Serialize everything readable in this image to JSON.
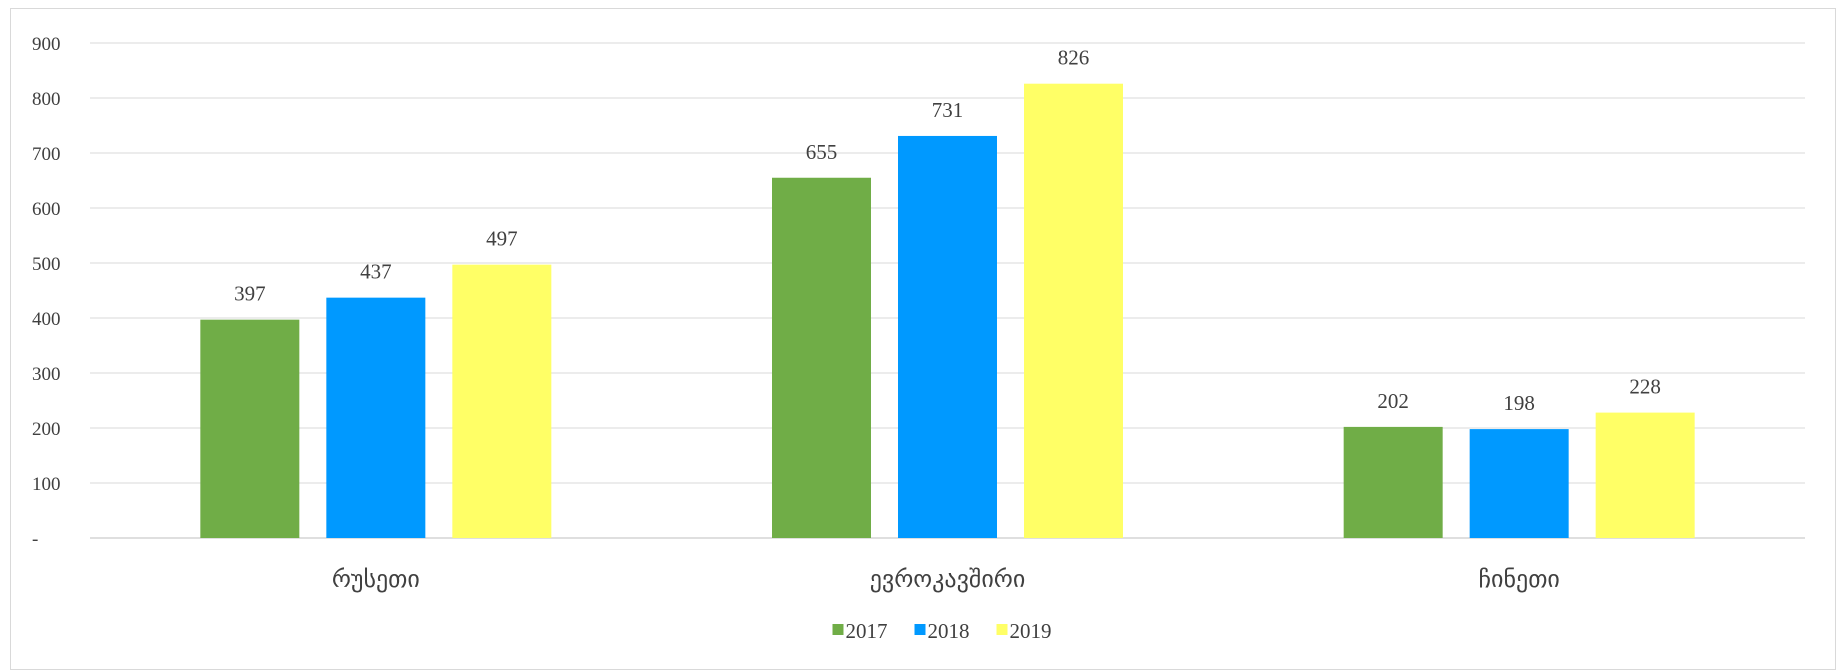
{
  "chart_data": {
    "type": "bar",
    "title": "",
    "xlabel": "",
    "ylabel": "",
    "categories": [
      "რუსეთი",
      "ევროკავშირი",
      "ჩინეთი"
    ],
    "series": [
      {
        "name": "2017",
        "values": [
          397,
          655,
          202
        ],
        "color": "#70ad47"
      },
      {
        "name": "2018",
        "values": [
          437,
          731,
          198
        ],
        "color": "#0099ff"
      },
      {
        "name": "2019",
        "values": [
          497,
          826,
          228
        ],
        "color": "#ffff66"
      }
    ],
    "ylim": [
      0,
      900
    ],
    "yticks": [
      0,
      100,
      200,
      300,
      400,
      500,
      600,
      700,
      800,
      900
    ],
    "ytick_labels": [
      "-",
      "100",
      "200",
      "300",
      "400",
      "500",
      "600",
      "700",
      "800",
      "900"
    ],
    "grid": true,
    "legend_position": "bottom",
    "data_labels": true
  }
}
